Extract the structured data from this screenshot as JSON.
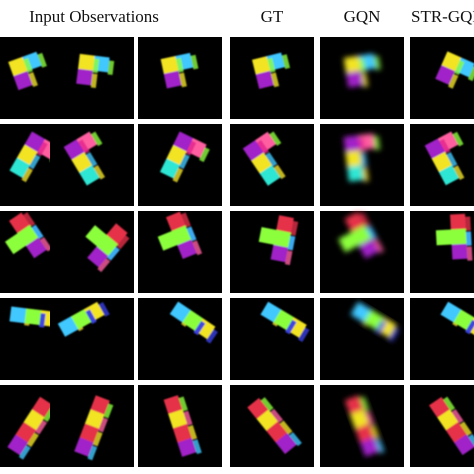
{
  "header": {
    "columns": [
      "Input Observations",
      "GT",
      "GQN",
      "STR-GQN"
    ]
  }
}
